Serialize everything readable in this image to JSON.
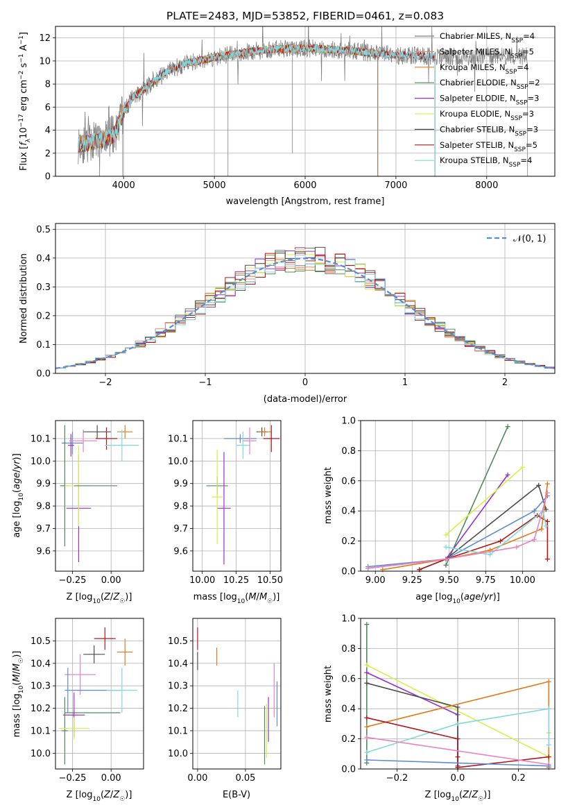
{
  "title": "PLATE=2483, MJD=53852, FIBERID=0461, z=0.083",
  "colors": {
    "chabrier_miles": "#7f7f7f",
    "salpeter_miles": "#f2846e",
    "kroupa_miles": "#e07b1d",
    "chabrier_elodie": "#4f8a5b",
    "salpeter_elodie": "#9b30c8",
    "kroupa_elodie": "#d4f04a",
    "chabrier_stelib": "#4d4d4d",
    "salpeter_stelib": "#b01818",
    "kroupa_stelib": "#7fd8e0",
    "blue": "#5b8bd6",
    "pink": "#ea82bf",
    "gauss": "#5b8bd6"
  },
  "chart_data": [
    {
      "id": "spectrum",
      "type": "line",
      "title": "PLATE=2483, MJD=53852, FIBERID=0461, z=0.083",
      "xlabel": "wavelength [Angstrom, rest frame]",
      "ylabel": "Flux [f_λ 10⁻¹⁷ erg cm⁻² s⁻¹ A⁻¹]",
      "xlim": [
        3250,
        8750
      ],
      "ylim": [
        0,
        13
      ],
      "xticks": [
        4000,
        5000,
        6000,
        7000,
        8000
      ],
      "yticks": [
        0,
        2,
        4,
        6,
        8,
        10,
        12
      ],
      "legend_position": "right",
      "legend": [
        {
          "label": "Chabrier MILES, N",
          "sub": "SSP",
          "tail": "=4",
          "color": "#7f7f7f"
        },
        {
          "label": "Salpeter MILES, N",
          "sub": "SSP",
          "tail": "=5",
          "color": "#f2846e"
        },
        {
          "label": "Kroupa MILES, N",
          "sub": "SSP",
          "tail": "=4",
          "color": "#e07b1d"
        },
        {
          "label": "Chabrier ELODIE, N",
          "sub": "SSP",
          "tail": "=2",
          "color": "#4f8a5b"
        },
        {
          "label": "Salpeter ELODIE, N",
          "sub": "SSP",
          "tail": "=3",
          "color": "#9b30c8"
        },
        {
          "label": "Kroupa ELODIE, N",
          "sub": "SSP",
          "tail": "=3",
          "color": "#d4f04a"
        },
        {
          "label": "Chabrier STELIB, N",
          "sub": "SSP",
          "tail": "=3",
          "color": "#4d4d4d"
        },
        {
          "label": "Salpeter STELIB, N",
          "sub": "SSP",
          "tail": "=5",
          "color": "#b01818"
        },
        {
          "label": "Kroupa STELIB, N",
          "sub": "SSP",
          "tail": "=4",
          "color": "#7fd8e0"
        }
      ],
      "continuum": [
        [
          3500,
          2.8
        ],
        [
          3700,
          3.0
        ],
        [
          3900,
          3.6
        ],
        [
          4000,
          5.6
        ],
        [
          4100,
          6.8
        ],
        [
          4300,
          8.0
        ],
        [
          4500,
          9.2
        ],
        [
          4700,
          9.8
        ],
        [
          5000,
          10.3
        ],
        [
          5300,
          10.7
        ],
        [
          5600,
          11.0
        ],
        [
          6000,
          11.1
        ],
        [
          6300,
          11.0
        ],
        [
          6600,
          10.8
        ],
        [
          7000,
          10.5
        ],
        [
          7400,
          10.4
        ]
      ],
      "series_ranges": [
        {
          "color": "#7f7f7f",
          "x": [
            3500,
            8450
          ]
        },
        {
          "color": "#f2846e",
          "x": [
            3500,
            7430
          ]
        },
        {
          "color": "#e07b1d",
          "x": [
            3500,
            6800
          ]
        },
        {
          "color": "#4f8a5b",
          "x": [
            3500,
            6800
          ]
        },
        {
          "color": "#9b30c8",
          "x": [
            3500,
            6800
          ]
        },
        {
          "color": "#d4f04a",
          "x": [
            3500,
            6800
          ]
        },
        {
          "color": "#4d4d4d",
          "x": [
            3500,
            7430
          ]
        },
        {
          "color": "#b01818",
          "x": [
            3500,
            7430
          ]
        },
        {
          "color": "#7fd8e0",
          "x": [
            3500,
            7430
          ]
        }
      ]
    },
    {
      "id": "residuals",
      "type": "line",
      "xlabel": "(data-model)/error",
      "ylabel": "Normed distribution",
      "xlim": [
        -2.5,
        2.5
      ],
      "ylim": [
        0,
        0.52
      ],
      "xticks": [
        -2,
        -1,
        0,
        1,
        2
      ],
      "yticks": [
        0.0,
        0.1,
        0.2,
        0.3,
        0.4,
        0.5
      ],
      "legend": [
        {
          "label": "𝒩(0, 1)",
          "style": "dashed",
          "color": "#5b8bd6"
        }
      ],
      "legend_position": "top-right",
      "bin_width": 0.1,
      "hist_colors": [
        "#7f7f7f",
        "#f2846e",
        "#e07b1d",
        "#4f8a5b",
        "#9b30c8",
        "#d4f04a",
        "#4d4d4d",
        "#b01818",
        "#7fd8e0"
      ]
    },
    {
      "id": "age_vs_z",
      "type": "scatter",
      "xlabel": "Z [log₁₀(Z/Z☉)]",
      "ylabel": "age  [log₁₀(age/yr)]",
      "xlim": [
        -0.36,
        0.21
      ],
      "ylim": [
        9.51,
        10.18
      ],
      "xticks": [
        -0.25,
        0.0
      ],
      "xticklabels": [
        "−0.25",
        "0.00"
      ],
      "yticks": [
        9.6,
        9.7,
        9.8,
        9.9,
        10.0,
        10.1
      ],
      "points": [
        {
          "x": -0.25,
          "y": 10.08,
          "xerr": 0.07,
          "yerr": 0.05,
          "color": "#5b8bd6"
        },
        {
          "x": -0.26,
          "y": 10.07,
          "xerr": 0.02,
          "yerr": 0.05,
          "color": "#9b30c8"
        },
        {
          "x": -0.18,
          "y": 10.09,
          "xerr": 0.09,
          "yerr": 0.05,
          "color": "#ea82bf"
        },
        {
          "x": -0.09,
          "y": 10.13,
          "xerr": 0.09,
          "yerr": 0.03,
          "color": "#4d4d4d"
        },
        {
          "x": -0.03,
          "y": 10.1,
          "xerr": 0.07,
          "yerr": 0.05,
          "color": "#b01818"
        },
        {
          "x": 0.09,
          "y": 10.13,
          "xerr": 0.05,
          "yerr": 0.03,
          "color": "#e07b1d"
        },
        {
          "x": 0.07,
          "y": 10.07,
          "xerr": 0.11,
          "yerr": 0.07,
          "color": "#7fd8e0"
        },
        {
          "x": -0.3,
          "y": 9.89,
          "xerr": 0.03,
          "yerr": 0.27,
          "color": "#4f8a5b"
        },
        {
          "x": -0.21,
          "y": 9.79,
          "xerr": 0.08,
          "yerr": 0.24,
          "color": "#9b30c8"
        },
        {
          "x": -0.21,
          "y": 9.89,
          "xerr": 0.09,
          "yerr": 0.18,
          "color": "#d4f04a"
        },
        {
          "x": -0.1,
          "y": 9.89,
          "xerr": 0.14,
          "yerr": 0.0,
          "color": "#4f8a5b"
        }
      ]
    },
    {
      "id": "age_vs_mass",
      "type": "scatter",
      "xlabel": "mass [log₁₀(M/M☉)]",
      "ylabel": "",
      "xlim": [
        9.93,
        10.58
      ],
      "ylim": [
        9.51,
        10.18
      ],
      "xticks": [
        10.0,
        10.25,
        10.5
      ],
      "xticklabels": [
        "10.00",
        "10.25",
        "10.50"
      ],
      "yticks": [
        9.6,
        9.7,
        9.8,
        9.9,
        10.0,
        10.1
      ],
      "points": [
        {
          "x": 10.28,
          "y": 10.1,
          "xerr": 0.12,
          "yerr": 0.02,
          "color": "#5b8bd6"
        },
        {
          "x": 10.3,
          "y": 10.07,
          "xerr": 0.05,
          "yerr": 0.06,
          "color": "#7fd8e0"
        },
        {
          "x": 10.35,
          "y": 10.09,
          "xerr": 0.05,
          "yerr": 0.06,
          "color": "#ea82bf"
        },
        {
          "x": 10.44,
          "y": 10.13,
          "xerr": 0.04,
          "yerr": 0.02,
          "color": "#4d4d4d"
        },
        {
          "x": 10.46,
          "y": 10.13,
          "xerr": 0.05,
          "yerr": 0.02,
          "color": "#e07b1d"
        },
        {
          "x": 10.51,
          "y": 10.1,
          "xerr": 0.06,
          "yerr": 0.06,
          "color": "#b01818"
        },
        {
          "x": 10.11,
          "y": 9.89,
          "xerr": 0.08,
          "yerr": 0.04,
          "color": "#4f8a5b"
        },
        {
          "x": 10.16,
          "y": 9.79,
          "xerr": 0.05,
          "yerr": 0.25,
          "color": "#9b30c8"
        },
        {
          "x": 10.11,
          "y": 9.84,
          "xerr": 0.04,
          "yerr": 0.21,
          "color": "#d4f04a"
        }
      ]
    },
    {
      "id": "weight_vs_age",
      "type": "line",
      "xlabel": "age  [log₁₀(age/yr)]",
      "ylabel": "mass weight",
      "xlim": [
        8.9,
        10.22
      ],
      "ylim": [
        0,
        1.0
      ],
      "xticks": [
        9.0,
        9.25,
        9.5,
        9.75,
        10.0
      ],
      "xticklabels": [
        "9.00",
        "9.25",
        "9.50",
        "9.75",
        "10.00"
      ],
      "yticks": [
        0.0,
        0.2,
        0.4,
        0.6,
        0.8,
        1.0
      ],
      "series": [
        {
          "color": "#4f8a5b",
          "points": [
            [
              9.48,
              0.04
            ],
            [
              9.9,
              0.96
            ]
          ]
        },
        {
          "color": "#9b30c8",
          "points": [
            [
              8.95,
              0.02
            ],
            [
              9.48,
              0.08
            ],
            [
              9.9,
              0.64
            ]
          ]
        },
        {
          "color": "#d4f04a",
          "points": [
            [
              9.48,
              0.24
            ],
            [
              10.0,
              0.69
            ]
          ]
        },
        {
          "color": "#4d4d4d",
          "points": [
            [
              9.3,
              0.01
            ],
            [
              9.48,
              0.08
            ],
            [
              10.11,
              0.57
            ],
            [
              10.16,
              0.41
            ]
          ]
        },
        {
          "color": "#5b8bd6",
          "points": [
            [
              8.95,
              0.03
            ],
            [
              9.48,
              0.08
            ],
            [
              10.08,
              0.4
            ],
            [
              10.17,
              0.5
            ]
          ]
        },
        {
          "color": "#b01818",
          "points": [
            [
              9.3,
              0.01
            ],
            [
              9.48,
              0.08
            ],
            [
              9.85,
              0.2
            ],
            [
              10.1,
              0.37
            ],
            [
              10.17,
              0.33
            ],
            [
              10.17,
              0.08
            ]
          ]
        },
        {
          "color": "#e07b1d",
          "points": [
            [
              9.05,
              0.01
            ],
            [
              9.48,
              0.08
            ],
            [
              9.78,
              0.14
            ],
            [
              10.13,
              0.28
            ],
            [
              10.17,
              0.58
            ]
          ]
        },
        {
          "color": "#7fd8e0",
          "points": [
            [
              9.48,
              0.16
            ],
            [
              9.78,
              0.11
            ],
            [
              10.14,
              0.4
            ],
            [
              10.16,
              0.3
            ]
          ]
        },
        {
          "color": "#ea82bf",
          "points": [
            [
              8.95,
              0.02
            ],
            [
              9.48,
              0.08
            ],
            [
              9.96,
              0.16
            ],
            [
              10.08,
              0.21
            ],
            [
              10.17,
              0.52
            ]
          ]
        }
      ]
    },
    {
      "id": "mass_vs_z",
      "type": "scatter",
      "xlabel": "Z [log₁₀(Z/Z☉)]",
      "ylabel": "mass [log₁₀(M/M☉)]",
      "xlim": [
        -0.36,
        0.21
      ],
      "ylim": [
        9.93,
        10.6
      ],
      "xticks": [
        -0.25,
        0.0
      ],
      "xticklabels": [
        "−0.25",
        "0.00"
      ],
      "yticks": [
        10.0,
        10.1,
        10.2,
        10.3,
        10.4,
        10.5
      ],
      "points": [
        {
          "x": -0.04,
          "y": 10.51,
          "xerr": 0.07,
          "yerr": 0.05,
          "color": "#b01818"
        },
        {
          "x": 0.09,
          "y": 10.45,
          "xerr": 0.05,
          "yerr": 0.06,
          "color": "#e07b1d"
        },
        {
          "x": -0.11,
          "y": 10.44,
          "xerr": 0.07,
          "yerr": 0.04,
          "color": "#4d4d4d"
        },
        {
          "x": -0.2,
          "y": 10.35,
          "xerr": 0.1,
          "yerr": 0.09,
          "color": "#ea82bf"
        },
        {
          "x": -0.1,
          "y": 10.28,
          "xerr": 0.16,
          "yerr": 0.0,
          "color": "#5b8bd6"
        },
        {
          "x": 0.07,
          "y": 10.28,
          "xerr": 0.1,
          "yerr": 0.1,
          "color": "#7fd8e0"
        },
        {
          "x": -0.12,
          "y": 10.18,
          "xerr": 0.18,
          "yerr": 0.0,
          "color": "#4f8a5b"
        },
        {
          "x": -0.3,
          "y": 10.1,
          "xerr": 0.02,
          "yerr": 0.15,
          "color": "#4f8a5b"
        },
        {
          "x": -0.24,
          "y": 10.17,
          "xerr": 0.07,
          "yerr": 0.1,
          "color": "#9b30c8"
        },
        {
          "x": -0.24,
          "y": 10.11,
          "xerr": 0.1,
          "yerr": 0.05,
          "color": "#d4f04a"
        },
        {
          "x": -0.28,
          "y": 10.28,
          "xerr": 0.02,
          "yerr": 0.1,
          "color": "#5b8bd6"
        }
      ]
    },
    {
      "id": "mass_vs_ebv",
      "type": "scatter",
      "xlabel": "E(B-V)",
      "ylabel": "",
      "xlim": [
        -0.005,
        0.087
      ],
      "ylim": [
        9.93,
        10.6
      ],
      "xticks": [
        0.0,
        0.05
      ],
      "xticklabels": [
        "0.00",
        "0.05"
      ],
      "yticks": [
        10.0,
        10.1,
        10.2,
        10.3,
        10.4,
        10.5
      ],
      "points": [
        {
          "x": 0.0,
          "y": 10.51,
          "xerr": 0,
          "yerr": 0.05,
          "color": "#b01818"
        },
        {
          "x": 0.0,
          "y": 10.41,
          "xerr": 0,
          "yerr": 0.04,
          "color": "#4d4d4d"
        },
        {
          "x": 0.02,
          "y": 10.43,
          "xerr": 0,
          "yerr": 0.04,
          "color": "#e07b1d"
        },
        {
          "x": 0.042,
          "y": 10.22,
          "xerr": 0,
          "yerr": 0.06,
          "color": "#7fd8e0"
        },
        {
          "x": 0.07,
          "y": 10.08,
          "xerr": 0,
          "yerr": 0.13,
          "color": "#4f8a5b"
        },
        {
          "x": 0.072,
          "y": 10.1,
          "xerr": 0,
          "yerr": 0.12,
          "color": "#d4f04a"
        },
        {
          "x": 0.074,
          "y": 10.15,
          "xerr": 0,
          "yerr": 0.1,
          "color": "#9b30c8"
        },
        {
          "x": 0.08,
          "y": 10.28,
          "xerr": 0,
          "yerr": 0.12,
          "color": "#ea82bf"
        },
        {
          "x": 0.083,
          "y": 10.22,
          "xerr": 0,
          "yerr": 0.1,
          "color": "#5b8bd6"
        }
      ]
    },
    {
      "id": "weight_vs_z",
      "type": "line",
      "xlabel": "Z [log₁₀(Z/Z☉)]",
      "ylabel": "mass weight",
      "xlim": [
        -0.32,
        0.32
      ],
      "ylim": [
        0,
        1.0
      ],
      "xticks": [
        -0.2,
        0.0,
        0.2
      ],
      "xticklabels": [
        "−0.2",
        "0.0",
        "0.2"
      ],
      "yticks": [
        0.0,
        0.2,
        0.4,
        0.6,
        0.8,
        1.0
      ],
      "series": [
        {
          "color": "#4f8a5b",
          "points": [
            [
              -0.3,
              0.96
            ],
            [
              -0.3,
              0.04
            ]
          ]
        },
        {
          "color": "#d4f04a",
          "points": [
            [
              -0.3,
              0.69
            ],
            [
              0.3,
              0.08
            ],
            [
              0.3,
              0.24
            ]
          ]
        },
        {
          "color": "#9b30c8",
          "points": [
            [
              -0.3,
              0.64
            ],
            [
              0.0,
              0.36
            ],
            [
              0.0,
              0.02
            ]
          ]
        },
        {
          "color": "#4d4d4d",
          "points": [
            [
              -0.3,
              0.57
            ],
            [
              0.0,
              0.41
            ],
            [
              0.0,
              0.01
            ]
          ]
        },
        {
          "color": "#e07b1d",
          "points": [
            [
              -0.3,
              0.28
            ],
            [
              0.3,
              0.58
            ],
            [
              0.3,
              0.01
            ]
          ]
        },
        {
          "color": "#7fd8e0",
          "points": [
            [
              -0.3,
              0.11
            ],
            [
              0.0,
              0.3
            ],
            [
              0.3,
              0.4
            ],
            [
              0.3,
              0.16
            ]
          ]
        },
        {
          "color": "#b01818",
          "points": [
            [
              -0.3,
              0.34
            ],
            [
              0.0,
              0.2
            ],
            [
              0.0,
              0.08
            ],
            [
              0.0,
              0.01
            ],
            [
              0.3,
              0.08
            ]
          ]
        },
        {
          "color": "#ea82bf",
          "points": [
            [
              -0.3,
              0.21
            ],
            [
              0.3,
              0.03
            ]
          ]
        },
        {
          "color": "#5b8bd6",
          "points": [
            [
              -0.3,
              0.06
            ],
            [
              0.3,
              0.02
            ]
          ]
        }
      ]
    }
  ]
}
